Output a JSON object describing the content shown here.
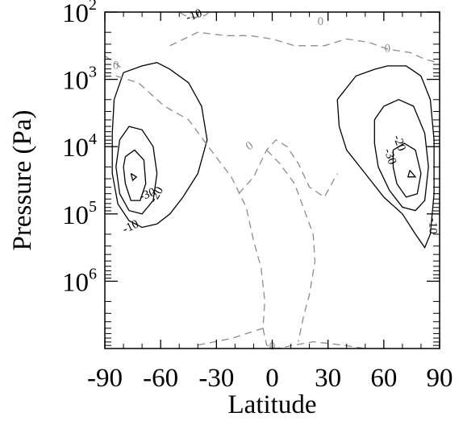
{
  "chart_data": {
    "type": "contour",
    "xlabel": "Latitude",
    "ylabel": "Pressure (Pa)",
    "x_ticks": [
      "-90",
      "-60",
      "-30",
      "0",
      "30",
      "60",
      "90"
    ],
    "y_ticks": [
      {
        "base": "10",
        "exp": "2"
      },
      {
        "base": "10",
        "exp": "3"
      },
      {
        "base": "10",
        "exp": "4"
      },
      {
        "base": "10",
        "exp": "5"
      },
      {
        "base": "10",
        "exp": "6"
      }
    ],
    "xlim": [
      -90,
      90
    ],
    "ylim_log10": [
      2,
      7
    ],
    "y_scale": "log",
    "y_inverted": true,
    "colors": {
      "negative": "#000000",
      "zero": "#8c8c8c"
    },
    "contours": [
      {
        "level": -10,
        "style": "solid",
        "points": [
          [
            -80,
            2.9
          ],
          [
            -70,
            2.8
          ],
          [
            -62,
            2.75
          ],
          [
            -55,
            2.85
          ],
          [
            -45,
            3.05
          ],
          [
            -38,
            3.4
          ],
          [
            -35,
            3.9
          ],
          [
            -40,
            4.4
          ],
          [
            -48,
            4.75
          ],
          [
            -55,
            5.0
          ],
          [
            -62,
            5.15
          ],
          [
            -70,
            5.2
          ],
          [
            -77,
            5.1
          ],
          [
            -83,
            4.85
          ],
          [
            -86,
            4.4
          ],
          [
            -86,
            3.8
          ],
          [
            -85,
            3.3
          ],
          [
            -80,
            2.9
          ]
        ]
      },
      {
        "level": -20,
        "style": "solid",
        "points": [
          [
            -82,
            3.9
          ],
          [
            -77,
            3.7
          ],
          [
            -70,
            3.75
          ],
          [
            -64,
            4.0
          ],
          [
            -62,
            4.4
          ],
          [
            -64,
            4.8
          ],
          [
            -70,
            5.0
          ],
          [
            -77,
            4.95
          ],
          [
            -82,
            4.7
          ],
          [
            -84,
            4.3
          ],
          [
            -82,
            3.9
          ]
        ]
      },
      {
        "level": -30,
        "style": "solid",
        "points": [
          [
            -79,
            4.15
          ],
          [
            -74,
            4.05
          ],
          [
            -69,
            4.2
          ],
          [
            -68,
            4.55
          ],
          [
            -71,
            4.8
          ],
          [
            -76,
            4.8
          ],
          [
            -79,
            4.55
          ],
          [
            -80,
            4.3
          ],
          [
            -79,
            4.15
          ]
        ]
      },
      {
        "level": -40,
        "style": "solid",
        "points": [
          [
            -76,
            4.4
          ],
          [
            -73,
            4.45
          ],
          [
            -75,
            4.5
          ],
          [
            -76,
            4.4
          ]
        ]
      },
      {
        "level": -10,
        "style": "solid",
        "points": [
          [
            35,
            3.3
          ],
          [
            45,
            2.95
          ],
          [
            55,
            2.85
          ],
          [
            62,
            2.8
          ],
          [
            72,
            2.8
          ],
          [
            80,
            2.95
          ],
          [
            85,
            3.3
          ],
          [
            87,
            3.9
          ],
          [
            87,
            4.7
          ],
          [
            85,
            5.3
          ],
          [
            82,
            5.5
          ],
          [
            77,
            5.3
          ],
          [
            70,
            5.0
          ],
          [
            60,
            4.75
          ],
          [
            50,
            4.4
          ],
          [
            40,
            4.05
          ],
          [
            36,
            3.7
          ],
          [
            35,
            3.3
          ]
        ]
      },
      {
        "level": -20,
        "style": "solid",
        "points": [
          [
            55,
            3.6
          ],
          [
            60,
            3.4
          ],
          [
            68,
            3.3
          ],
          [
            76,
            3.4
          ],
          [
            82,
            3.8
          ],
          [
            84,
            4.3
          ],
          [
            82,
            4.8
          ],
          [
            77,
            4.95
          ],
          [
            70,
            4.9
          ],
          [
            63,
            4.65
          ],
          [
            57,
            4.3
          ],
          [
            55,
            3.95
          ],
          [
            55,
            3.6
          ]
        ]
      },
      {
        "level": -30,
        "style": "solid",
        "points": [
          [
            65,
            4.05
          ],
          [
            71,
            3.95
          ],
          [
            77,
            4.05
          ],
          [
            80,
            4.4
          ],
          [
            78,
            4.7
          ],
          [
            72,
            4.75
          ],
          [
            67,
            4.55
          ],
          [
            65,
            4.3
          ],
          [
            65,
            4.05
          ]
        ]
      },
      {
        "level": -40,
        "style": "solid",
        "points": [
          [
            74,
            4.35
          ],
          [
            77,
            4.45
          ],
          [
            73,
            4.45
          ],
          [
            74,
            4.35
          ]
        ]
      },
      {
        "level": 0,
        "style": "dashed",
        "points": [
          [
            -84,
            2.95
          ],
          [
            -72,
            3.05
          ],
          [
            -58,
            3.4
          ],
          [
            -45,
            3.6
          ],
          [
            -33,
            4.05
          ],
          [
            -22,
            4.45
          ],
          [
            -14,
            4.9
          ],
          [
            -10,
            5.4
          ],
          [
            -6,
            5.8
          ],
          [
            -4,
            6.3
          ],
          [
            -5,
            6.7
          ],
          [
            -22,
            6.85
          ],
          [
            -40,
            6.95
          ]
        ]
      },
      {
        "level": 0,
        "style": "dashed",
        "points": [
          [
            -5,
            6.7
          ],
          [
            -3,
            6.95
          ],
          [
            2,
            7.0
          ],
          [
            12,
            6.95
          ],
          [
            22,
            6.9
          ],
          [
            38,
            6.95
          ],
          [
            50,
            7.0
          ]
        ]
      },
      {
        "level": 0,
        "style": "dashed",
        "points": [
          [
            -3,
            4.05
          ],
          [
            4,
            4.25
          ],
          [
            12,
            4.55
          ],
          [
            18,
            5.0
          ],
          [
            22,
            5.3
          ],
          [
            23,
            5.7
          ],
          [
            20,
            6.2
          ],
          [
            17,
            6.5
          ],
          [
            14,
            6.9
          ]
        ]
      },
      {
        "level": 0,
        "style": "dashed",
        "points": [
          [
            -18,
            4.7
          ],
          [
            -10,
            4.45
          ],
          [
            -3,
            4.05
          ],
          [
            2,
            3.9
          ],
          [
            8,
            4.0
          ],
          [
            14,
            4.25
          ],
          [
            20,
            4.6
          ],
          [
            28,
            4.75
          ],
          [
            32,
            4.55
          ],
          [
            35,
            4.4
          ]
        ]
      },
      {
        "level": 0,
        "style": "dashed",
        "points": [
          [
            -55,
            2.5
          ],
          [
            -40,
            2.3
          ],
          [
            -25,
            2.35
          ],
          [
            -12,
            2.35
          ],
          [
            0,
            2.4
          ],
          [
            12,
            2.5
          ],
          [
            28,
            2.5
          ],
          [
            40,
            2.4
          ],
          [
            52,
            2.45
          ],
          [
            62,
            2.55
          ],
          [
            74,
            2.6
          ],
          [
            82,
            2.7
          ],
          [
            89,
            2.75
          ]
        ]
      },
      {
        "level": 0,
        "style": "dashed",
        "points": [
          [
            -34,
            2.0
          ],
          [
            -36,
            2.05
          ],
          [
            -42,
            2.08
          ],
          [
            -47,
            2.05
          ],
          [
            -50,
            2.0
          ]
        ]
      },
      {
        "level": 0,
        "style": "dashed",
        "points": [
          [
            -90,
            2.65
          ],
          [
            -85,
            2.75
          ],
          [
            -80,
            2.85
          ]
        ]
      }
    ],
    "contour_labels": [
      {
        "text": "0",
        "x": -84,
        "y": 2.8,
        "sign": "zero",
        "angle": 0
      },
      {
        "text": "-10",
        "x": -42,
        "y": 2.06,
        "sign": "neg",
        "angle": -20
      },
      {
        "text": "0",
        "x": 26,
        "y": 2.15,
        "sign": "zero",
        "angle": 0
      },
      {
        "text": "0",
        "x": 62,
        "y": 2.55,
        "sign": "zero",
        "angle": 0
      },
      {
        "text": "0",
        "x": -12,
        "y": 4.0,
        "sign": "zero",
        "angle": -35
      },
      {
        "text": "0",
        "x": 0,
        "y": 6.98,
        "sign": "zero",
        "angle": 0
      },
      {
        "text": "-10",
        "x": -76,
        "y": 5.2,
        "sign": "neg",
        "angle": -25
      },
      {
        "text": "-30",
        "x": -67,
        "y": 4.72,
        "sign": "neg",
        "angle": -20
      },
      {
        "text": "-20",
        "x": -62,
        "y": 4.72,
        "sign": "neg",
        "angle": -60
      },
      {
        "text": "-30",
        "x": 63,
        "y": 4.15,
        "sign": "neg",
        "angle": 70
      },
      {
        "text": "-20",
        "x": 68,
        "y": 3.95,
        "sign": "neg",
        "angle": 70
      },
      {
        "text": "-10",
        "x": 86,
        "y": 5.18,
        "sign": "neg",
        "angle": 90
      }
    ]
  }
}
